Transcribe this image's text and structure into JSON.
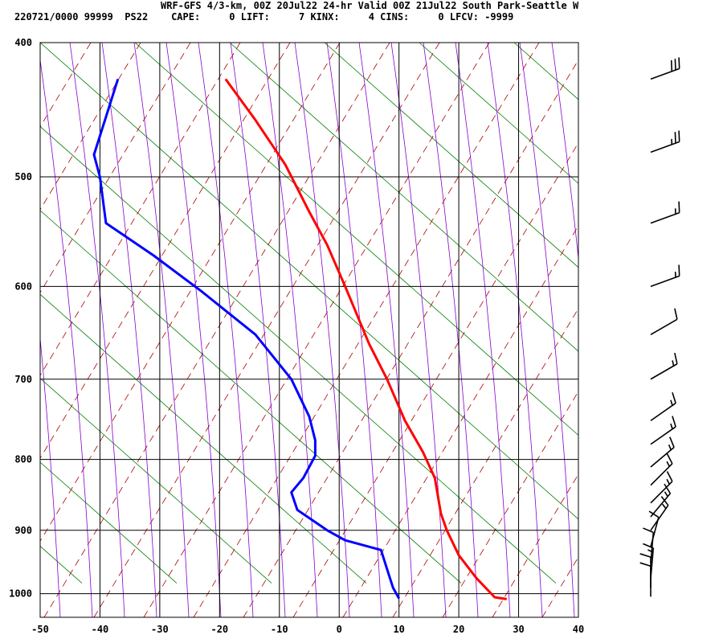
{
  "header": {
    "line1": "WRF-GFS 4/3-km, 00Z 20Jul22 24-hr Valid 00Z 21Jul22 South Park-Seattle W",
    "line2": "220721/0000 99999  PS22    CAPE:     0 LIFT:     7 KINX:     4 CINS:     0 LFCV: -9999"
  },
  "chart_data": {
    "type": "line",
    "title": "",
    "xlabel": "",
    "ylabel": "",
    "xlim": [
      -50,
      40
    ],
    "ylim_pressure": [
      1040,
      400
    ],
    "x_ticks": [
      -50,
      -40,
      -30,
      -20,
      -10,
      0,
      10,
      20,
      30,
      40
    ],
    "x_tick_labels": [
      "-50",
      "-40",
      "-30",
      "-20",
      "-10",
      "0",
      "10",
      "20",
      "30",
      "40"
    ],
    "y_ticks": [
      400,
      500,
      600,
      700,
      800,
      900,
      1000
    ],
    "y_tick_labels": [
      "400",
      "500",
      "600",
      "700",
      "800",
      "900",
      "1000"
    ],
    "grid": true,
    "colors": {
      "temperature": "#ff0000",
      "dewpoint": "#0000ff",
      "dry_adiabat": "#aa0000",
      "moist_adiabat": "#8800cc",
      "green_lines": "#008000",
      "grid": "#000000",
      "barbs": "#000000"
    },
    "series": [
      {
        "name": "",
        "role": "temperature",
        "points": [
          [
            28,
            1009
          ],
          [
            26,
            1006
          ],
          [
            23,
            975
          ],
          [
            20,
            938
          ],
          [
            18,
            900
          ],
          [
            17,
            875
          ],
          [
            16,
            825
          ],
          [
            14,
            790
          ],
          [
            11,
            750
          ],
          [
            8,
            700
          ],
          [
            5,
            660
          ],
          [
            1,
            600
          ],
          [
            -2,
            560
          ],
          [
            -5,
            530
          ],
          [
            -9,
            490
          ],
          [
            -14,
            455
          ],
          [
            -19,
            425
          ]
        ]
      },
      {
        "name": "",
        "role": "dewpoint",
        "points": [
          [
            10,
            1008
          ],
          [
            9,
            990
          ],
          [
            8,
            960
          ],
          [
            7,
            930
          ],
          [
            1,
            915
          ],
          [
            -2,
            900
          ],
          [
            -7,
            870
          ],
          [
            -8,
            845
          ],
          [
            -6,
            825
          ],
          [
            -4,
            795
          ],
          [
            -4,
            775
          ],
          [
            -5,
            745
          ],
          [
            -8,
            700
          ],
          [
            -14,
            650
          ],
          [
            -23,
            605
          ],
          [
            -31,
            570
          ],
          [
            -39,
            540
          ],
          [
            -40,
            500
          ],
          [
            -41,
            482
          ],
          [
            -37,
            425
          ]
        ]
      }
    ],
    "wind_barbs": [
      {
        "p": 425,
        "dir": 250,
        "spd": 30
      },
      {
        "p": 480,
        "dir": 250,
        "spd": 25
      },
      {
        "p": 540,
        "dir": 250,
        "spd": 15
      },
      {
        "p": 600,
        "dir": 250,
        "spd": 15
      },
      {
        "p": 650,
        "dir": 240,
        "spd": 10
      },
      {
        "p": 700,
        "dir": 240,
        "spd": 15
      },
      {
        "p": 750,
        "dir": 235,
        "spd": 15
      },
      {
        "p": 780,
        "dir": 235,
        "spd": 15
      },
      {
        "p": 810,
        "dir": 230,
        "spd": 15
      },
      {
        "p": 835,
        "dir": 225,
        "spd": 15
      },
      {
        "p": 860,
        "dir": 225,
        "spd": 15
      },
      {
        "p": 880,
        "dir": 220,
        "spd": 15
      },
      {
        "p": 900,
        "dir": 215,
        "spd": 15
      },
      {
        "p": 925,
        "dir": 195,
        "spd": 10
      },
      {
        "p": 950,
        "dir": 185,
        "spd": 10
      },
      {
        "p": 975,
        "dir": 185,
        "spd": 15
      },
      {
        "p": 990,
        "dir": 180,
        "spd": 10
      },
      {
        "p": 1005,
        "dir": 180,
        "spd": 10
      }
    ]
  }
}
